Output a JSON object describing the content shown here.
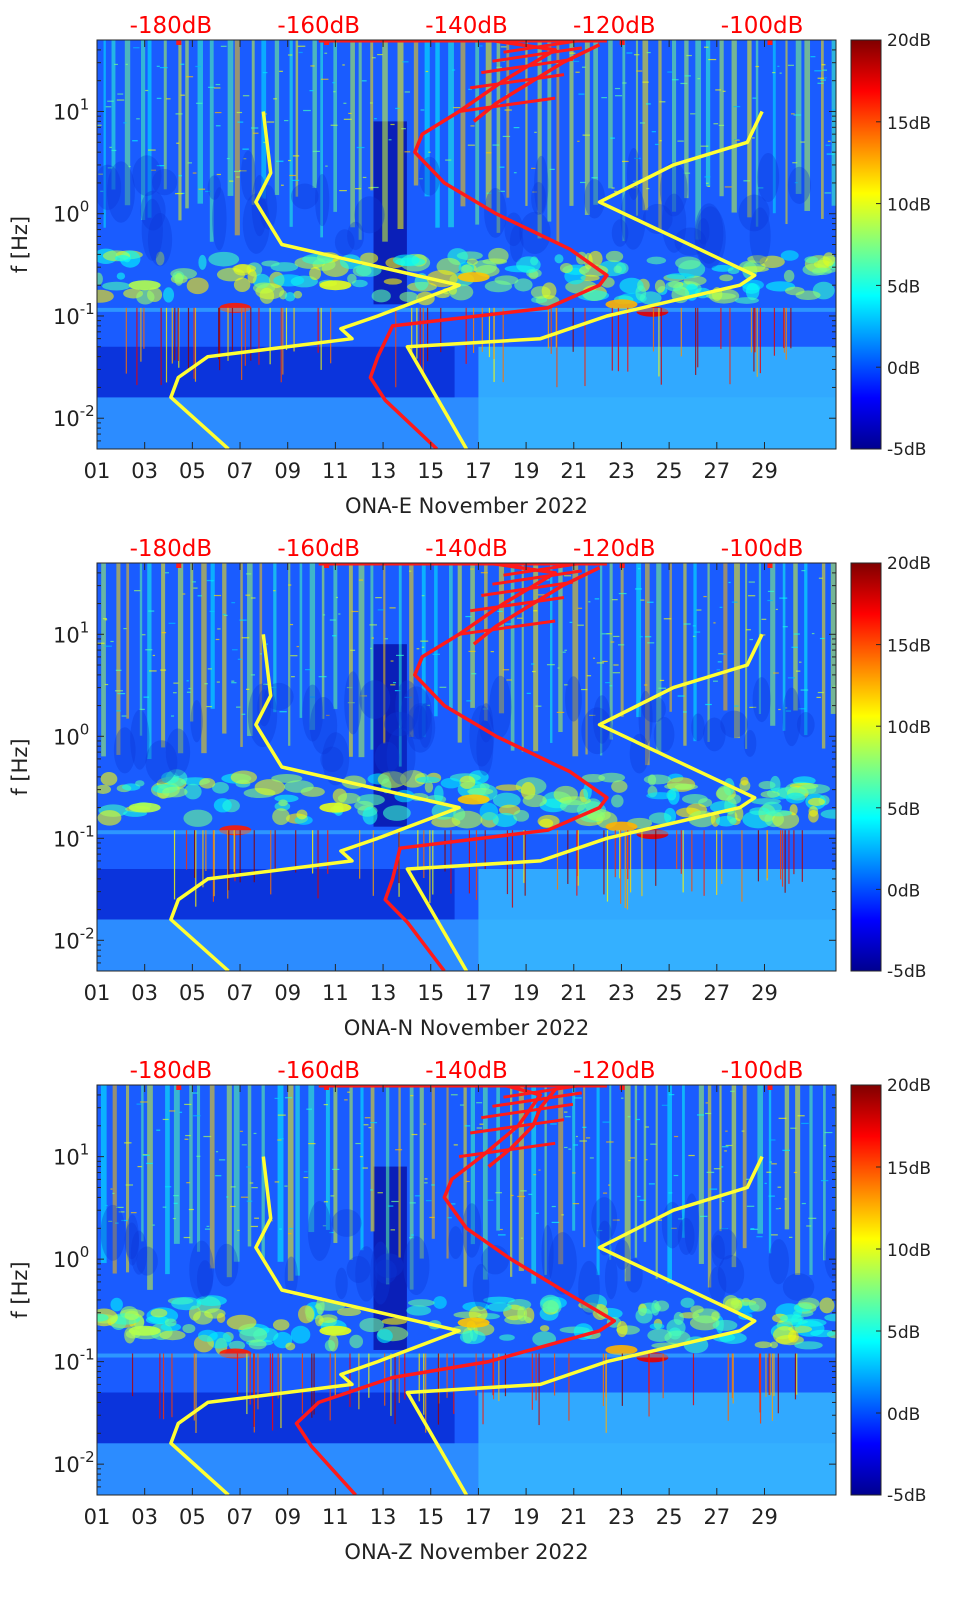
{
  "figure": {
    "title": ""
  },
  "colors": {
    "psd_curve": "#ff1a1a",
    "noise_model": "#ffff33",
    "top_axis_text": "#ff0000",
    "axis_text": "#222222",
    "colormap": [
      "#00008f",
      "#0000ff",
      "#0080ff",
      "#00ffff",
      "#80ff80",
      "#ffff00",
      "#ff8000",
      "#ff0000",
      "#800000"
    ]
  },
  "chart_data": [
    {
      "type": "heatmap",
      "station": "ONA-E",
      "xlabel": "ONA-E November 2022",
      "ylabel": "f [Hz]",
      "x_range": [
        1,
        32
      ],
      "x_ticks": [
        "01",
        "03",
        "05",
        "07",
        "09",
        "11",
        "13",
        "15",
        "17",
        "19",
        "21",
        "23",
        "25",
        "27",
        "29"
      ],
      "y_scale": "log",
      "y_range": [
        0.005,
        50
      ],
      "y_tick_values": [
        0.01,
        0.1,
        1,
        10
      ],
      "y_tick_mantissa": [
        "10",
        "10",
        "10",
        "10"
      ],
      "y_tick_exponents": [
        "-2",
        "-1",
        "0",
        "1"
      ],
      "top_axis_labels": [
        "-180dB",
        "-160dB",
        "-140dB",
        "-120dB",
        "-100dB"
      ],
      "top_axis_values": [
        -180,
        -160,
        -140,
        -120,
        -100
      ],
      "colorbar": {
        "ticks": [
          "20dB",
          "15dB",
          "10dB",
          "5dB",
          "0dB",
          "-5dB"
        ],
        "range": [
          -5,
          20
        ]
      },
      "series": [
        {
          "name": "noise model (yellow)",
          "points": [
            [
              0.005,
              -172.2
            ],
            [
              0.016,
              -180
            ],
            [
              0.025,
              -179
            ],
            [
              0.04,
              -175
            ],
            [
              0.06,
              -155.5
            ],
            [
              0.075,
              -157
            ],
            [
              0.1,
              -152
            ],
            [
              0.2,
              -141
            ],
            [
              0.5,
              -165
            ],
            [
              1.3,
              -168.5
            ],
            [
              2.5,
              -166.5
            ],
            [
              10,
              -167.5
            ]
          ]
        },
        {
          "name": "noise model (yellow, high)",
          "points": [
            [
              0.005,
              -140
            ],
            [
              0.05,
              -148
            ],
            [
              0.06,
              -130
            ],
            [
              0.1,
              -121
            ],
            [
              0.2,
              -103
            ],
            [
              0.25,
              -101
            ],
            [
              1.3,
              -122
            ],
            [
              3,
              -112
            ],
            [
              5,
              -102
            ],
            [
              10,
              -100
            ]
          ]
        },
        {
          "name": "PSD (red)",
          "points": [
            [
              0.005,
              -144
            ],
            [
              0.015,
              -151
            ],
            [
              0.025,
              -153
            ],
            [
              0.04,
              -152
            ],
            [
              0.08,
              -150
            ],
            [
              0.12,
              -129
            ],
            [
              0.2,
              -122
            ],
            [
              0.25,
              -121
            ],
            [
              0.45,
              -126
            ],
            [
              1,
              -136
            ],
            [
              2,
              -143
            ],
            [
              4,
              -147
            ],
            [
              6,
              -146
            ],
            [
              10,
              -141
            ],
            [
              20,
              -135
            ],
            [
              40,
              -128
            ],
            [
              50,
              -137
            ]
          ]
        },
        {
          "name": "PSD spread (red)",
          "points": [
            [
              8,
              -139
            ],
            [
              12,
              -136
            ],
            [
              20,
              -131
            ],
            [
              30,
              -127
            ],
            [
              45,
              -122
            ]
          ]
        }
      ]
    },
    {
      "type": "heatmap",
      "station": "ONA-N",
      "xlabel": "ONA-N November 2022",
      "ylabel": "f [Hz]",
      "x_range": [
        1,
        32
      ],
      "x_ticks": [
        "01",
        "03",
        "05",
        "07",
        "09",
        "11",
        "13",
        "15",
        "17",
        "19",
        "21",
        "23",
        "25",
        "27",
        "29"
      ],
      "y_scale": "log",
      "y_range": [
        0.005,
        50
      ],
      "y_tick_values": [
        0.01,
        0.1,
        1,
        10
      ],
      "y_tick_mantissa": [
        "10",
        "10",
        "10",
        "10"
      ],
      "y_tick_exponents": [
        "-2",
        "-1",
        "0",
        "1"
      ],
      "top_axis_labels": [
        "-180dB",
        "-160dB",
        "-140dB",
        "-120dB",
        "-100dB"
      ],
      "top_axis_values": [
        -180,
        -160,
        -140,
        -120,
        -100
      ],
      "colorbar": {
        "ticks": [
          "20dB",
          "15dB",
          "10dB",
          "5dB",
          "0dB",
          "-5dB"
        ],
        "range": [
          -5,
          20
        ]
      },
      "series": [
        {
          "name": "noise model (yellow)",
          "points": [
            [
              0.005,
              -172.2
            ],
            [
              0.016,
              -180
            ],
            [
              0.025,
              -179
            ],
            [
              0.04,
              -175
            ],
            [
              0.06,
              -155.5
            ],
            [
              0.075,
              -157
            ],
            [
              0.1,
              -152
            ],
            [
              0.2,
              -141
            ],
            [
              0.5,
              -165
            ],
            [
              1.3,
              -168.5
            ],
            [
              2.5,
              -166.5
            ],
            [
              10,
              -167.5
            ]
          ]
        },
        {
          "name": "noise model (yellow, high)",
          "points": [
            [
              0.005,
              -140
            ],
            [
              0.05,
              -148
            ],
            [
              0.06,
              -130
            ],
            [
              0.1,
              -121
            ],
            [
              0.2,
              -103
            ],
            [
              0.25,
              -101
            ],
            [
              1.3,
              -122
            ],
            [
              3,
              -112
            ],
            [
              5,
              -102
            ],
            [
              10,
              -100
            ]
          ]
        },
        {
          "name": "PSD (red)",
          "points": [
            [
              0.005,
              -143
            ],
            [
              0.015,
              -148
            ],
            [
              0.025,
              -151
            ],
            [
              0.04,
              -150
            ],
            [
              0.08,
              -149
            ],
            [
              0.12,
              -129
            ],
            [
              0.2,
              -122
            ],
            [
              0.25,
              -121
            ],
            [
              0.45,
              -126
            ],
            [
              1,
              -136
            ],
            [
              2,
              -143
            ],
            [
              4,
              -147
            ],
            [
              6,
              -146
            ],
            [
              10,
              -141
            ],
            [
              20,
              -135
            ],
            [
              40,
              -128
            ],
            [
              50,
              -137
            ]
          ]
        },
        {
          "name": "PSD spread (red)",
          "points": [
            [
              8,
              -139
            ],
            [
              12,
              -136
            ],
            [
              20,
              -131
            ],
            [
              30,
              -127
            ],
            [
              45,
              -122
            ]
          ]
        }
      ]
    },
    {
      "type": "heatmap",
      "station": "ONA-Z",
      "xlabel": "ONA-Z November 2022",
      "ylabel": "f [Hz]",
      "x_range": [
        1,
        32
      ],
      "x_ticks": [
        "01",
        "03",
        "05",
        "07",
        "09",
        "11",
        "13",
        "15",
        "17",
        "19",
        "21",
        "23",
        "25",
        "27",
        "29"
      ],
      "y_scale": "log",
      "y_range": [
        0.005,
        50
      ],
      "y_tick_values": [
        0.01,
        0.1,
        1,
        10
      ],
      "y_tick_mantissa": [
        "10",
        "10",
        "10",
        "10"
      ],
      "y_tick_exponents": [
        "-2",
        "-1",
        "0",
        "1"
      ],
      "top_axis_labels": [
        "-180dB",
        "-160dB",
        "-140dB",
        "-120dB",
        "-100dB"
      ],
      "top_axis_values": [
        -180,
        -160,
        -140,
        -120,
        -100
      ],
      "colorbar": {
        "ticks": [
          "20dB",
          "15dB",
          "10dB",
          "5dB",
          "0dB",
          "-5dB"
        ],
        "range": [
          -5,
          20
        ]
      },
      "series": [
        {
          "name": "noise model (yellow)",
          "points": [
            [
              0.005,
              -172.2
            ],
            [
              0.016,
              -180
            ],
            [
              0.025,
              -179
            ],
            [
              0.04,
              -175
            ],
            [
              0.06,
              -155.5
            ],
            [
              0.075,
              -157
            ],
            [
              0.1,
              -152
            ],
            [
              0.2,
              -141
            ],
            [
              0.5,
              -165
            ],
            [
              1.3,
              -168.5
            ],
            [
              2.5,
              -166.5
            ],
            [
              10,
              -167.5
            ]
          ]
        },
        {
          "name": "noise model (yellow, high)",
          "points": [
            [
              0.005,
              -140
            ],
            [
              0.05,
              -148
            ],
            [
              0.06,
              -130
            ],
            [
              0.1,
              -121
            ],
            [
              0.2,
              -103
            ],
            [
              0.25,
              -101
            ],
            [
              1.3,
              -122
            ],
            [
              3,
              -112
            ],
            [
              5,
              -102
            ],
            [
              10,
              -100
            ]
          ]
        },
        {
          "name": "PSD (red)",
          "points": [
            [
              0.005,
              -155
            ],
            [
              0.015,
              -161
            ],
            [
              0.025,
              -163
            ],
            [
              0.04,
              -160
            ],
            [
              0.07,
              -150
            ],
            [
              0.1,
              -137
            ],
            [
              0.2,
              -122
            ],
            [
              0.25,
              -120
            ],
            [
              0.45,
              -126
            ],
            [
              1,
              -134
            ],
            [
              2,
              -140
            ],
            [
              4,
              -143
            ],
            [
              6,
              -142
            ],
            [
              10,
              -138
            ],
            [
              20,
              -133
            ],
            [
              40,
              -130
            ],
            [
              50,
              -135
            ]
          ]
        },
        {
          "name": "PSD spread (red)",
          "points": [
            [
              8,
              -137
            ],
            [
              12,
              -134
            ],
            [
              20,
              -131
            ],
            [
              30,
              -130
            ],
            [
              45,
              -128
            ]
          ]
        }
      ]
    }
  ]
}
